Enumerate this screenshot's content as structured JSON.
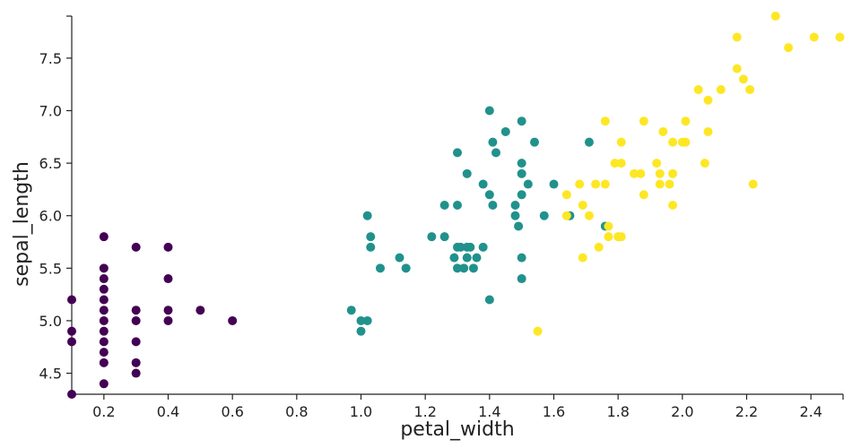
{
  "chart_data": {
    "type": "scatter",
    "title": "",
    "xlabel": "petal_width",
    "ylabel": "sepal_length",
    "xlim": [
      0.1,
      2.5
    ],
    "ylim": [
      4.3,
      7.9
    ],
    "xticks": [
      0.2,
      0.4,
      0.6,
      0.8,
      1.0,
      1.2,
      1.4,
      1.6,
      1.8,
      2.0,
      2.2,
      2.4
    ],
    "xtick_labels": [
      "0.2",
      "0.4",
      "0.6",
      "0.8",
      "1.0",
      "1.2",
      "1.4",
      "1.6",
      "1.8",
      "2.0",
      "2.2",
      "2.4"
    ],
    "yticks": [
      4.5,
      5.0,
      5.5,
      6.0,
      6.5,
      7.0,
      7.5
    ],
    "ytick_labels": [
      "4.5",
      "5.0",
      "5.5",
      "6.0",
      "6.5",
      "7.0",
      "7.5"
    ],
    "grid": false,
    "legend": "none",
    "colors": [
      "#440154",
      "#21918c",
      "#fde725"
    ],
    "series": [
      {
        "color": "#440154",
        "points": [
          [
            0.1,
            5.2
          ],
          [
            0.1,
            4.9
          ],
          [
            0.1,
            4.8
          ],
          [
            0.1,
            4.3
          ],
          [
            0.2,
            5.8
          ],
          [
            0.2,
            5.5
          ],
          [
            0.2,
            5.4
          ],
          [
            0.2,
            5.3
          ],
          [
            0.2,
            5.2
          ],
          [
            0.2,
            5.1
          ],
          [
            0.2,
            5.0
          ],
          [
            0.2,
            4.9
          ],
          [
            0.2,
            4.8
          ],
          [
            0.2,
            4.7
          ],
          [
            0.2,
            4.6
          ],
          [
            0.2,
            4.4
          ],
          [
            0.3,
            5.7
          ],
          [
            0.3,
            5.1
          ],
          [
            0.3,
            5.0
          ],
          [
            0.3,
            4.8
          ],
          [
            0.3,
            4.6
          ],
          [
            0.3,
            4.5
          ],
          [
            0.4,
            5.7
          ],
          [
            0.4,
            5.4
          ],
          [
            0.4,
            5.1
          ],
          [
            0.4,
            5.0
          ],
          [
            0.5,
            5.1
          ],
          [
            0.6,
            5.0
          ]
        ]
      },
      {
        "color": "#21918c",
        "points": [
          [
            0.97,
            5.1
          ],
          [
            1.0,
            5.0
          ],
          [
            1.0,
            4.9
          ],
          [
            1.02,
            5.0
          ],
          [
            1.02,
            6.0
          ],
          [
            1.03,
            5.8
          ],
          [
            1.03,
            5.7
          ],
          [
            1.06,
            5.5
          ],
          [
            1.12,
            5.6
          ],
          [
            1.14,
            5.5
          ],
          [
            1.22,
            5.8
          ],
          [
            1.26,
            6.1
          ],
          [
            1.26,
            5.8
          ],
          [
            1.29,
            5.6
          ],
          [
            1.3,
            5.7
          ],
          [
            1.3,
            6.6
          ],
          [
            1.3,
            6.1
          ],
          [
            1.3,
            5.5
          ],
          [
            1.31,
            5.7
          ],
          [
            1.32,
            5.5
          ],
          [
            1.33,
            6.4
          ],
          [
            1.33,
            5.6
          ],
          [
            1.33,
            5.7
          ],
          [
            1.34,
            5.7
          ],
          [
            1.35,
            5.5
          ],
          [
            1.36,
            5.6
          ],
          [
            1.38,
            5.7
          ],
          [
            1.38,
            6.3
          ],
          [
            1.4,
            6.2
          ],
          [
            1.4,
            7.0
          ],
          [
            1.41,
            6.7
          ],
          [
            1.41,
            6.1
          ],
          [
            1.42,
            6.6
          ],
          [
            1.4,
            5.2
          ],
          [
            1.45,
            6.8
          ],
          [
            1.48,
            6.1
          ],
          [
            1.48,
            6.0
          ],
          [
            1.49,
            5.9
          ],
          [
            1.5,
            6.9
          ],
          [
            1.5,
            6.5
          ],
          [
            1.5,
            6.4
          ],
          [
            1.5,
            6.2
          ],
          [
            1.5,
            5.6
          ],
          [
            1.5,
            5.4
          ],
          [
            1.52,
            6.3
          ],
          [
            1.54,
            6.7
          ],
          [
            1.57,
            6.0
          ],
          [
            1.6,
            6.3
          ],
          [
            1.65,
            6.0
          ],
          [
            1.71,
            6.7
          ],
          [
            1.76,
            5.9
          ]
        ]
      },
      {
        "color": "#fde725",
        "points": [
          [
            1.55,
            4.9
          ],
          [
            1.64,
            6.2
          ],
          [
            1.64,
            6.0
          ],
          [
            1.68,
            6.3
          ],
          [
            1.69,
            5.6
          ],
          [
            1.69,
            6.1
          ],
          [
            1.71,
            6.0
          ],
          [
            1.73,
            6.3
          ],
          [
            1.74,
            5.7
          ],
          [
            1.76,
            6.9
          ],
          [
            1.76,
            6.3
          ],
          [
            1.77,
            5.9
          ],
          [
            1.77,
            5.8
          ],
          [
            1.79,
            6.5
          ],
          [
            1.8,
            5.8
          ],
          [
            1.81,
            6.5
          ],
          [
            1.81,
            6.7
          ],
          [
            1.81,
            5.8
          ],
          [
            1.85,
            6.4
          ],
          [
            1.87,
            6.4
          ],
          [
            1.88,
            6.9
          ],
          [
            1.88,
            6.2
          ],
          [
            1.92,
            6.5
          ],
          [
            1.93,
            6.4
          ],
          [
            1.93,
            6.3
          ],
          [
            1.94,
            6.8
          ],
          [
            1.96,
            6.3
          ],
          [
            1.97,
            6.7
          ],
          [
            1.97,
            6.4
          ],
          [
            1.97,
            6.1
          ],
          [
            2.0,
            6.7
          ],
          [
            2.01,
            6.9
          ],
          [
            2.01,
            6.7
          ],
          [
            2.05,
            7.2
          ],
          [
            2.07,
            6.5
          ],
          [
            2.08,
            6.8
          ],
          [
            2.08,
            7.1
          ],
          [
            2.12,
            7.2
          ],
          [
            2.17,
            7.7
          ],
          [
            2.17,
            7.4
          ],
          [
            2.19,
            7.3
          ],
          [
            2.21,
            7.2
          ],
          [
            2.22,
            6.3
          ],
          [
            2.29,
            7.9
          ],
          [
            2.33,
            7.6
          ],
          [
            2.41,
            7.7
          ],
          [
            2.49,
            7.7
          ]
        ]
      }
    ]
  }
}
